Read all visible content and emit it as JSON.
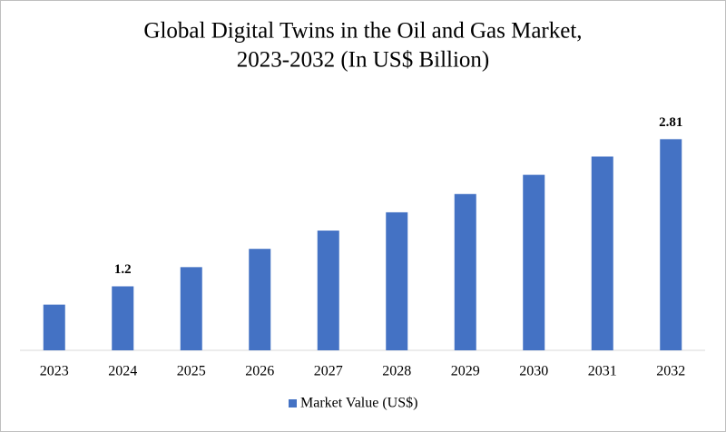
{
  "chart_data": {
    "type": "bar",
    "title": [
      "Global Digital Twins in the Oil and Gas Market,",
      "2023-2032 (In US$ Billion)"
    ],
    "categories": [
      "2023",
      "2024",
      "2025",
      "2026",
      "2027",
      "2028",
      "2029",
      "2030",
      "2031",
      "2032"
    ],
    "series": [
      {
        "name": "Market Value (US$)",
        "color": "#4472c4",
        "values": [
          1.0,
          1.2,
          1.41,
          1.61,
          1.81,
          2.01,
          2.21,
          2.42,
          2.62,
          2.81
        ],
        "value_labels": [
          null,
          "1.2",
          null,
          null,
          null,
          null,
          null,
          null,
          null,
          "2.81"
        ]
      }
    ],
    "ylim": [
      0.5,
      3.3
    ],
    "legend": "bottom"
  }
}
